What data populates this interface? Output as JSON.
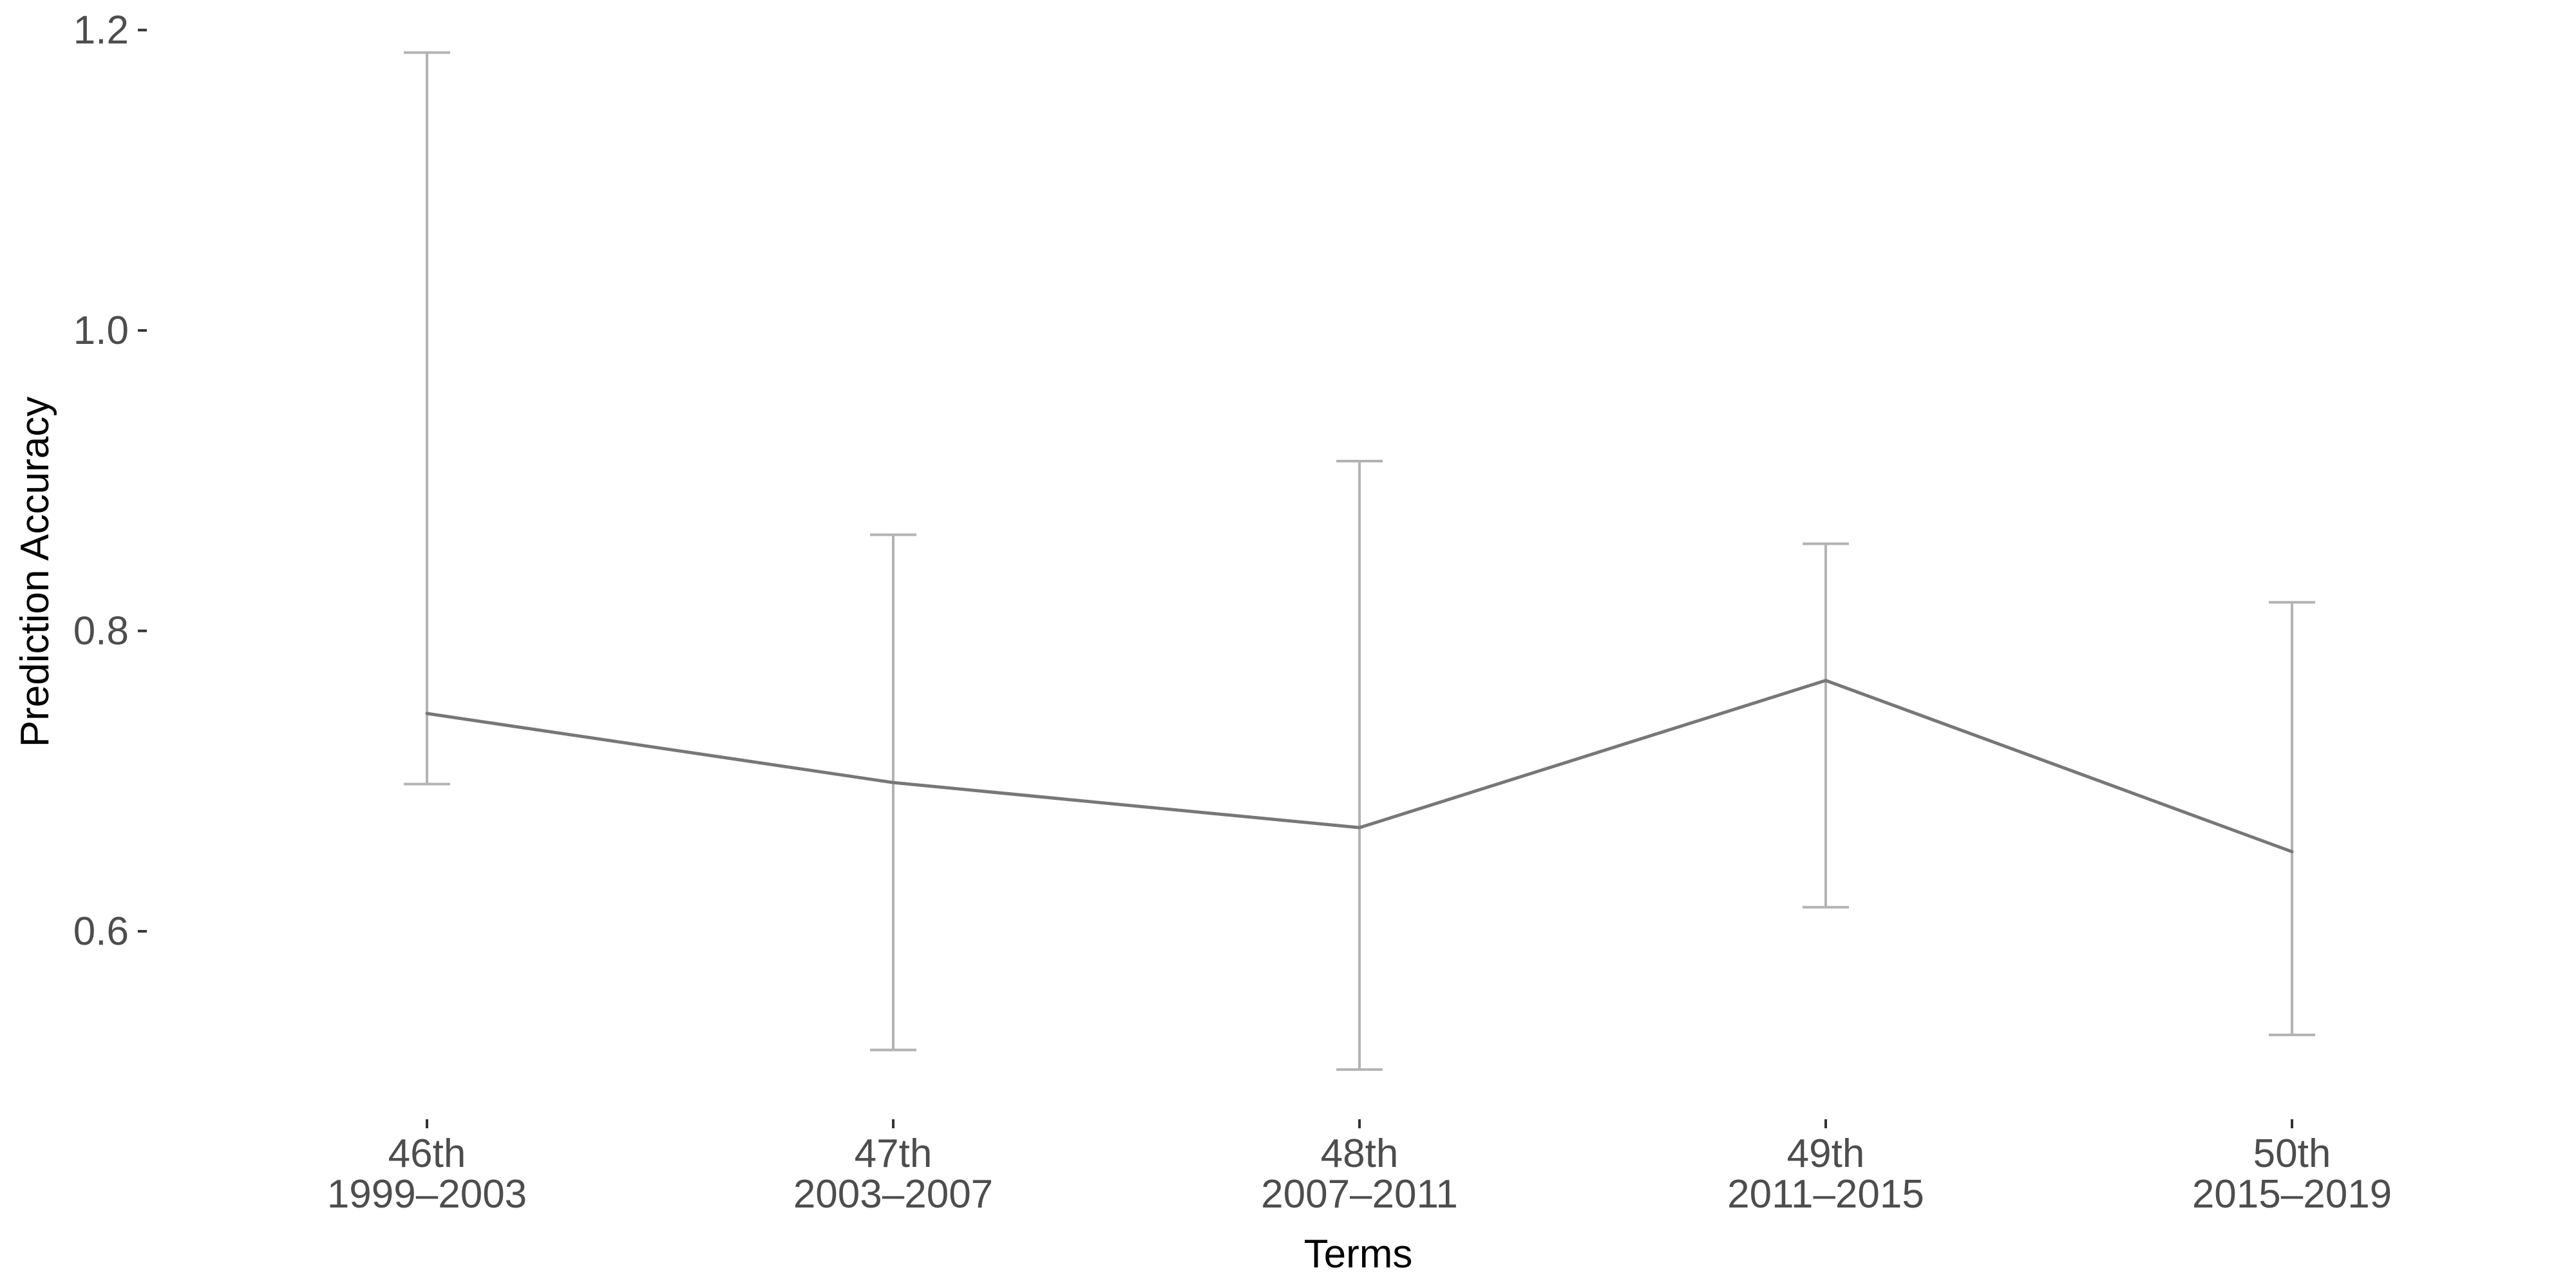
{
  "chart_data": {
    "type": "line",
    "title": "",
    "xlabel": "Terms",
    "ylabel": "Prediction Accuracy",
    "categories": [
      [
        "46th",
        "1999–2003"
      ],
      [
        "47th",
        "2003–2007"
      ],
      [
        "48th",
        "2007–2011"
      ],
      [
        "49th",
        "2011–2015"
      ],
      [
        "50th",
        "2015–2019"
      ]
    ],
    "series": [
      {
        "values": [
          0.745,
          0.699,
          0.669,
          0.767,
          0.653
        ],
        "error_low": [
          0.698,
          0.521,
          0.508,
          0.616,
          0.531
        ],
        "error_high": [
          1.185,
          0.864,
          0.913,
          0.858,
          0.819
        ]
      }
    ],
    "yticks": [
      0.6,
      0.8,
      1.0,
      1.2
    ],
    "ytick_labels": [
      "0.6",
      "0.8",
      "1.0",
      "1.2"
    ],
    "ylim": [
      0.48,
      1.22
    ],
    "grid": false,
    "legend": "none",
    "colors": {
      "line": "#777777",
      "errorbar": "#b3b3b3",
      "tick_text": "#4d4d4d",
      "axis_text": "#000000"
    }
  }
}
